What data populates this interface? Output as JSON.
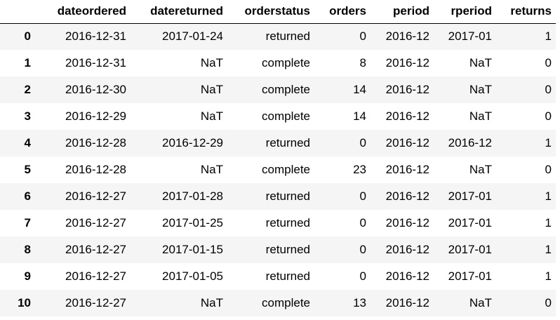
{
  "table": {
    "columns": [
      "",
      "dateordered",
      "datereturned",
      "orderstatus",
      "orders",
      "period",
      "rperiod",
      "returns"
    ],
    "rows": [
      {
        "index": "0",
        "dateordered": "2016-12-31",
        "datereturned": "2017-01-24",
        "orderstatus": "returned",
        "orders": "0",
        "period": "2016-12",
        "rperiod": "2017-01",
        "returns": "1"
      },
      {
        "index": "1",
        "dateordered": "2016-12-31",
        "datereturned": "NaT",
        "orderstatus": "complete",
        "orders": "8",
        "period": "2016-12",
        "rperiod": "NaT",
        "returns": "0"
      },
      {
        "index": "2",
        "dateordered": "2016-12-30",
        "datereturned": "NaT",
        "orderstatus": "complete",
        "orders": "14",
        "period": "2016-12",
        "rperiod": "NaT",
        "returns": "0"
      },
      {
        "index": "3",
        "dateordered": "2016-12-29",
        "datereturned": "NaT",
        "orderstatus": "complete",
        "orders": "14",
        "period": "2016-12",
        "rperiod": "NaT",
        "returns": "0"
      },
      {
        "index": "4",
        "dateordered": "2016-12-28",
        "datereturned": "2016-12-29",
        "orderstatus": "returned",
        "orders": "0",
        "period": "2016-12",
        "rperiod": "2016-12",
        "returns": "1"
      },
      {
        "index": "5",
        "dateordered": "2016-12-28",
        "datereturned": "NaT",
        "orderstatus": "complete",
        "orders": "23",
        "period": "2016-12",
        "rperiod": "NaT",
        "returns": "0"
      },
      {
        "index": "6",
        "dateordered": "2016-12-27",
        "datereturned": "2017-01-28",
        "orderstatus": "returned",
        "orders": "0",
        "period": "2016-12",
        "rperiod": "2017-01",
        "returns": "1"
      },
      {
        "index": "7",
        "dateordered": "2016-12-27",
        "datereturned": "2017-01-25",
        "orderstatus": "returned",
        "orders": "0",
        "period": "2016-12",
        "rperiod": "2017-01",
        "returns": "1"
      },
      {
        "index": "8",
        "dateordered": "2016-12-27",
        "datereturned": "2017-01-15",
        "orderstatus": "returned",
        "orders": "0",
        "period": "2016-12",
        "rperiod": "2017-01",
        "returns": "1"
      },
      {
        "index": "9",
        "dateordered": "2016-12-27",
        "datereturned": "2017-01-05",
        "orderstatus": "returned",
        "orders": "0",
        "period": "2016-12",
        "rperiod": "2017-01",
        "returns": "1"
      },
      {
        "index": "10",
        "dateordered": "2016-12-27",
        "datereturned": "NaT",
        "orderstatus": "complete",
        "orders": "13",
        "period": "2016-12",
        "rperiod": "NaT",
        "returns": "0"
      }
    ]
  },
  "colors": {
    "stripe": "#f5f5f5",
    "background": "#ffffff",
    "text": "#000000"
  }
}
